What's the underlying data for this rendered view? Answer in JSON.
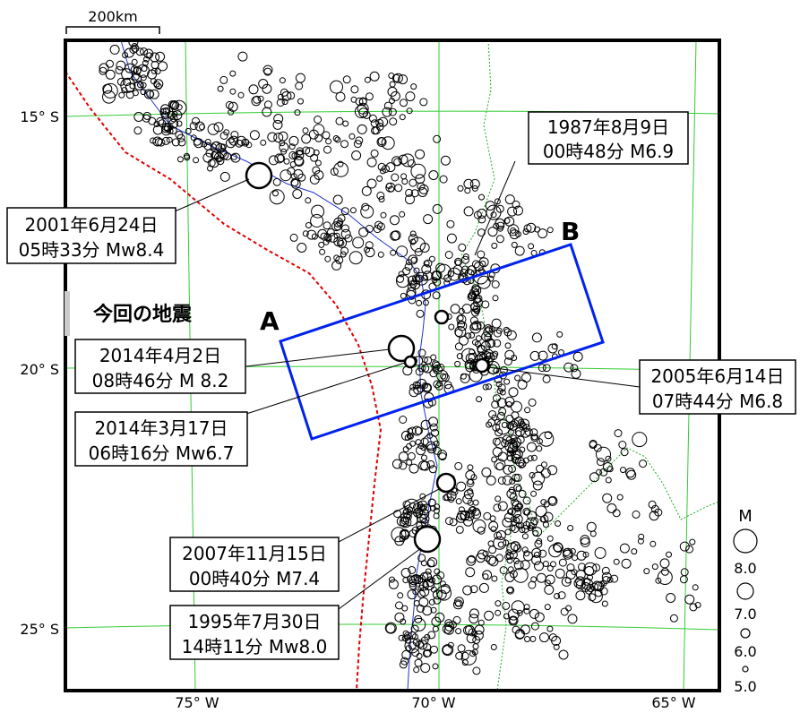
{
  "scale_bar": {
    "label": "200km"
  },
  "axes": {
    "lat_labels": [
      "15° S",
      "20° S",
      "25° S"
    ],
    "lon_labels": [
      "75° W",
      "70° W",
      "65° W"
    ]
  },
  "section": {
    "start_label": "A",
    "end_label": "B"
  },
  "current_quake_label": "今回の地震",
  "events": [
    {
      "date": "2001年6月24日",
      "time": "05時33分 Mw8.4"
    },
    {
      "date": "1987年8月9日",
      "time": "00時48分 M6.9"
    },
    {
      "date": "2014年4月2日",
      "time": "08時46分 M 8.2"
    },
    {
      "date": "2014年3月17日",
      "time": "06時16分 Mw6.7"
    },
    {
      "date": "2005年6月14日",
      "time": "07時44分 M6.8"
    },
    {
      "date": "2007年11月15日",
      "time": "00時40分 M7.4"
    },
    {
      "date": "1995年7月30日",
      "time": "14時11分 Mw8.0"
    }
  ],
  "legend": {
    "title": "M",
    "magnitudes": [
      "8.0",
      "7.0",
      "6.0",
      "5.0"
    ]
  },
  "colors": {
    "trench": "#e00000",
    "coast": "#2233cc",
    "border": "#22aa22",
    "grid": "#33cc33",
    "section": "#0022ee"
  }
}
